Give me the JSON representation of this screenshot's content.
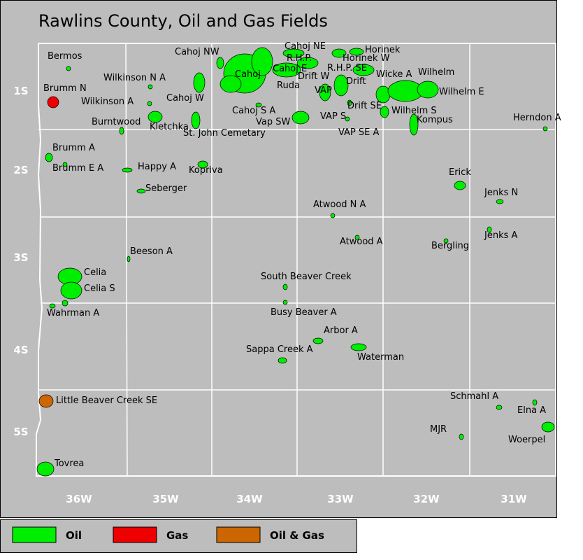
{
  "title": "Rawlins County, Oil and Gas Fields",
  "townships": [
    "1S",
    "2S",
    "3S",
    "4S",
    "5S"
  ],
  "ranges": [
    "36W",
    "35W",
    "34W",
    "33W",
    "32W",
    "31W"
  ],
  "fields": [
    "Bermos",
    "Brumm N",
    "Wilkinson N A",
    "Wilkinson A",
    "Cahoj NW",
    "Cahoj W",
    "Cahoj",
    "Cahoj NE",
    "R.H.P.",
    "Cahoj E",
    "Horinek",
    "Horinek W",
    "R.H.P. SE",
    "Drift W",
    "Ruda",
    "VAP",
    "Drift",
    "Wicke A",
    "Wilhelm",
    "Wilhelm E",
    "Drift SE",
    "Wilhelm S",
    "Cahoj S A",
    "Vap SW",
    "VAP S",
    "Kompus",
    "Herndon A",
    "Burntwood",
    "Kletchka",
    "St. John Cemetary",
    "VAP SE A",
    "Brumm A",
    "Brumm E A",
    "Happy A",
    "Kopriva",
    "Erick",
    "Seberger",
    "Jenks N",
    "Atwood N A",
    "Jenks A",
    "Atwood A",
    "Bergling",
    "Beeson A",
    "Celia",
    "South Beaver Creek",
    "Celia S",
    "Wahrman A",
    "Busy Beaver A",
    "Arbor A",
    "Sappa Creek A",
    "Waterman",
    "Little Beaver Creek SE",
    "Schmahl A",
    "Elna A",
    "MJR",
    "Woerpel",
    "Tovrea"
  ],
  "legend": [
    {
      "label": "Oil",
      "color": "#00ee00"
    },
    {
      "label": "Gas",
      "color": "#ee0000"
    },
    {
      "label": "Oil & Gas",
      "color": "#cc6600"
    }
  ]
}
